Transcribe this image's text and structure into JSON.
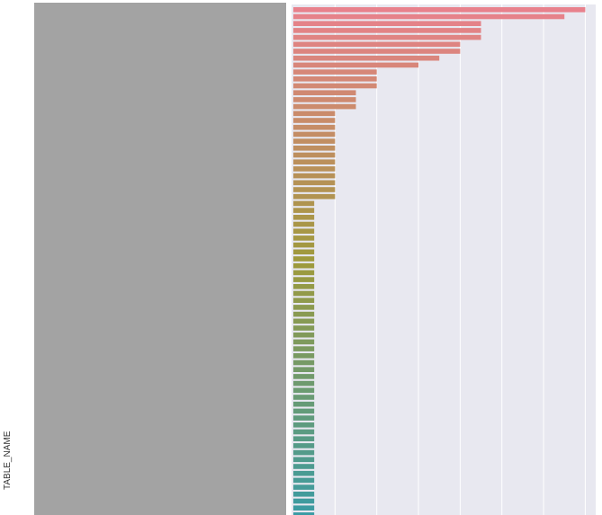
{
  "chart_data": {
    "type": "bar",
    "orientation": "horizontal",
    "title": "",
    "xlabel": "",
    "ylabel": "TABLE_NAME",
    "categories_redacted": true,
    "grid": true,
    "x_tick_labels_visible": false,
    "xlim": [
      0,
      14.5
    ],
    "values": [
      14,
      13,
      9,
      9,
      9,
      8,
      8,
      7,
      6,
      4,
      4,
      4,
      3,
      3,
      3,
      2,
      2,
      2,
      2,
      2,
      2,
      2,
      2,
      2,
      2,
      2,
      2,
      2,
      1,
      1,
      1,
      1,
      1,
      1,
      1,
      1,
      1,
      1,
      1,
      1,
      1,
      1,
      1,
      1,
      1,
      1,
      1,
      1,
      1,
      1,
      1,
      1,
      1,
      1,
      1,
      1,
      1,
      1,
      1,
      1,
      1,
      1,
      1,
      1,
      1,
      1,
      1,
      1,
      1,
      1,
      1,
      1,
      1,
      1
    ],
    "palette": {
      "start_color": "#e8818c",
      "mid_color": "#9e9a3c",
      "end_color": "#3a9ba4"
    }
  },
  "colors": {
    "plot_background": "#e8e8f0",
    "gridline": "#ffffff",
    "redaction": "#a3a3a3"
  }
}
